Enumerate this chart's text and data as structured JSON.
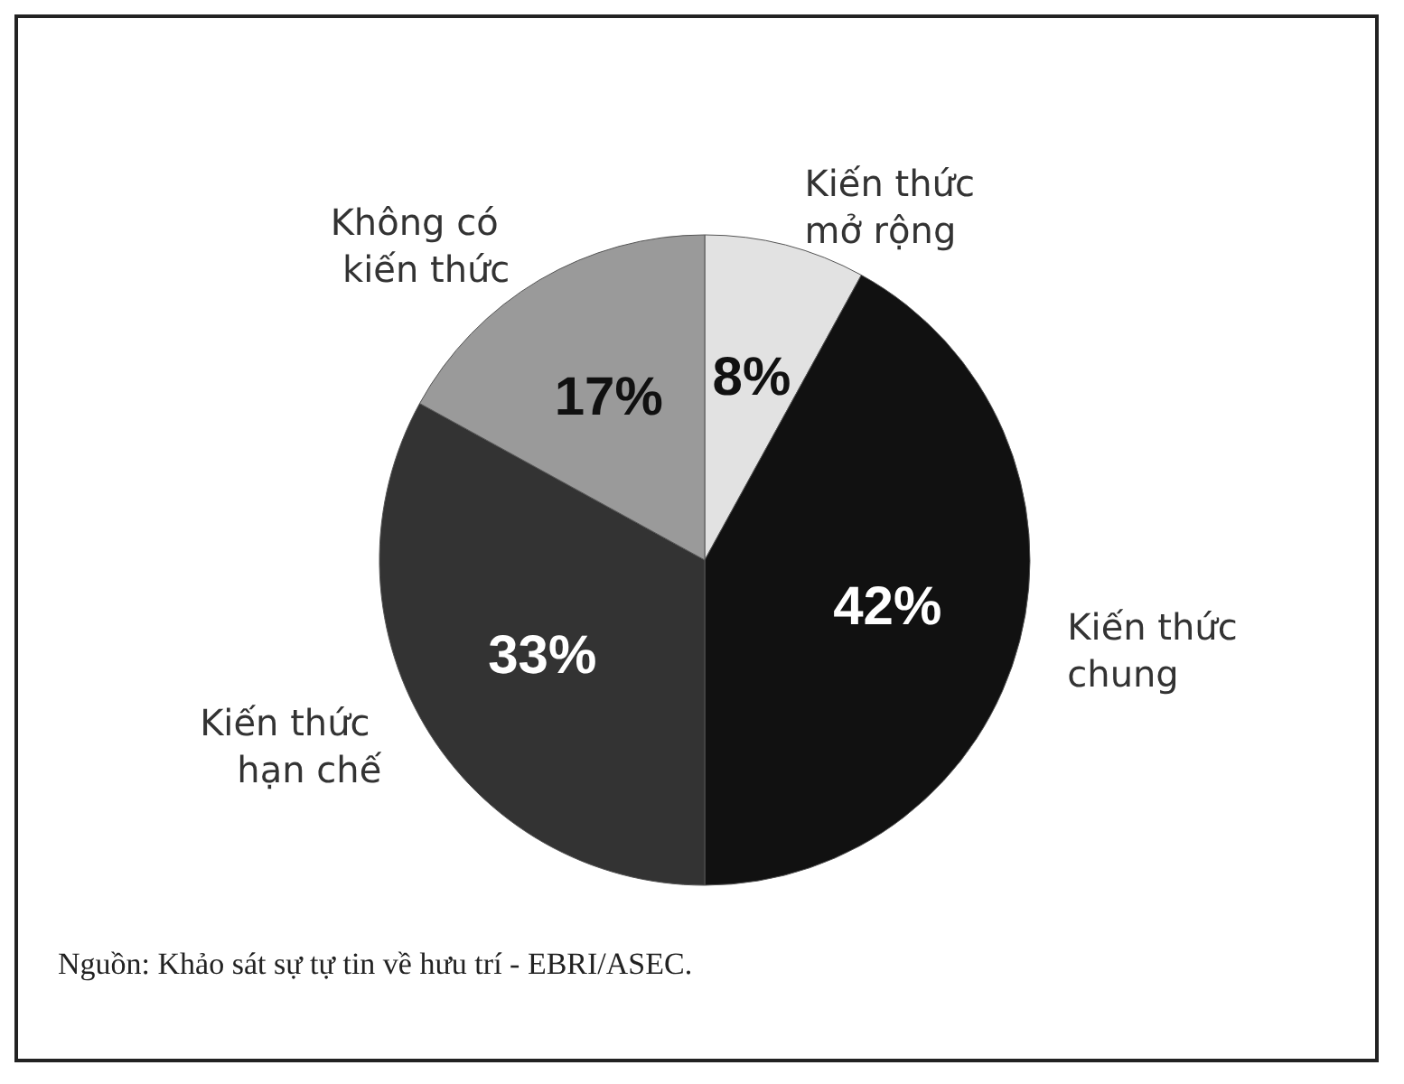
{
  "chart_data": {
    "type": "pie",
    "categories": [
      "Kiến thức mở rộng",
      "Kiến thức chung",
      "Kiến thức hạn chế",
      "Không có kiến thức"
    ],
    "values": [
      8,
      42,
      33,
      17
    ],
    "colors": [
      "#e2e2e2",
      "#111111",
      "#333333",
      "#9a9a9a"
    ],
    "value_labels": [
      "8%",
      "42%",
      "33%",
      "17%"
    ],
    "legend": false,
    "annotations": [
      "Nguồn: Khảo sát sự tự tin về hưu trí - EBRI/ASEC."
    ]
  }
}
